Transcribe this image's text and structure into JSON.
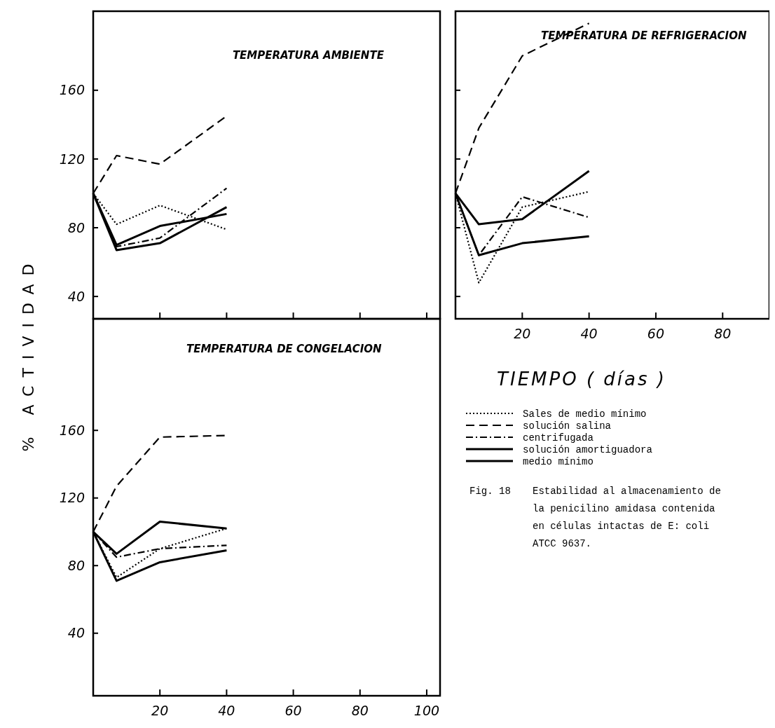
{
  "chart_data": [
    {
      "type": "line",
      "title": "TEMPERATURA AMBIENTE",
      "ylabel": "% ACTIVIDAD",
      "x": [
        0,
        7,
        20,
        40
      ],
      "xlim": [
        0,
        104
      ],
      "ylim": [
        27,
        206
      ],
      "xticks": [
        {
          "value": 20,
          "label": null
        },
        {
          "value": 40,
          "label": null
        },
        {
          "value": 60,
          "label": null
        },
        {
          "value": 80,
          "label": null
        },
        {
          "value": 100,
          "label": null
        }
      ],
      "yticks": [
        40,
        80,
        120,
        160
      ],
      "tick_labels": "y",
      "legend": false,
      "series": [
        {
          "color": "#000000",
          "line_style": "dotted",
          "values": [
            100,
            82,
            93,
            79
          ]
        },
        {
          "color": "#000000",
          "line_style": "dashed",
          "values": [
            100,
            122,
            117,
            145
          ]
        },
        {
          "color": "#000000",
          "line_style": "dashdot",
          "values": [
            100,
            69,
            74,
            103
          ]
        },
        {
          "color": "#000000",
          "line_style": "solid",
          "values": [
            100,
            70,
            81,
            88
          ]
        },
        {
          "color": "#000000",
          "line_style": "solid",
          "values": [
            100,
            67,
            71,
            92
          ]
        }
      ]
    },
    {
      "type": "line",
      "title": "TEMPERATURA DE REFRIGERACION",
      "xlabel": "TIEMPO ( días )",
      "x": [
        0,
        7,
        20,
        40
      ],
      "xlim": [
        0,
        94
      ],
      "ylim": [
        27,
        206
      ],
      "xticks": [
        20,
        40,
        60,
        80
      ],
      "yticks": [
        {
          "value": 40,
          "label": null
        },
        {
          "value": 80,
          "label": null
        },
        {
          "value": 120,
          "label": null
        },
        {
          "value": 160,
          "label": null
        }
      ],
      "tick_labels": "x",
      "legend": "bottom",
      "annotations": [
        "Fig. 18",
        "Estabilidad al almacenamiento de la penicilino amidasa contenida en células intactas de E: coli ATCC 9637."
      ],
      "series": [
        {
          "name": "Sales de medio mínimo",
          "color": "#000000",
          "line_style": "dotted",
          "values": [
            100,
            48,
            92,
            101
          ]
        },
        {
          "name": "solución salina",
          "color": "#000000",
          "line_style": "dashed",
          "values": [
            100,
            138,
            180,
            199
          ]
        },
        {
          "name": "centrifugada",
          "color": "#000000",
          "line_style": "dashdot",
          "values": [
            100,
            64,
            98,
            86
          ]
        },
        {
          "name": "solución amortiguadora",
          "color": "#000000",
          "line_style": "solid",
          "values": [
            100,
            82,
            85,
            113
          ]
        },
        {
          "name": "medio mínimo",
          "color": "#000000",
          "line_style": "solid",
          "values": [
            100,
            64,
            71,
            75
          ]
        }
      ]
    },
    {
      "type": "line",
      "title": "TEMPERATURA DE CONGELACION",
      "x": [
        0,
        7,
        20,
        40
      ],
      "xlim": [
        0,
        104
      ],
      "ylim": [
        3,
        226
      ],
      "xticks": [
        20,
        40,
        60,
        80,
        100
      ],
      "yticks": [
        40,
        80,
        120,
        160
      ],
      "legend": false,
      "series": [
        {
          "color": "#000000",
          "line_style": "dotted",
          "values": [
            100,
            73,
            90,
            102
          ]
        },
        {
          "color": "#000000",
          "line_style": "dashed",
          "values": [
            100,
            127,
            156,
            157
          ]
        },
        {
          "color": "#000000",
          "line_style": "dashdot",
          "values": [
            100,
            85,
            90,
            92
          ]
        },
        {
          "color": "#000000",
          "line_style": "solid",
          "values": [
            100,
            87,
            106,
            102
          ]
        },
        {
          "color": "#000000",
          "line_style": "solid",
          "values": [
            100,
            71,
            82,
            89
          ]
        }
      ]
    }
  ]
}
